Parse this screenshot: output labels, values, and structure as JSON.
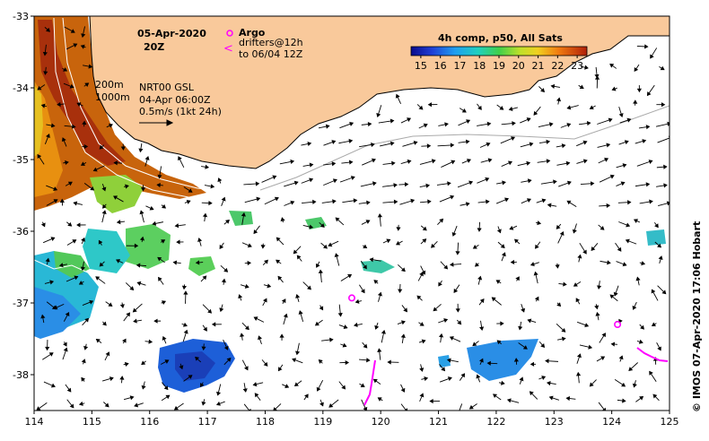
{
  "map": {
    "date_label": "05-Apr-2020",
    "time_label": "20Z",
    "argo_label": "Argo",
    "drifters_label": "drifters@12h",
    "drifters_range_label": "to 06/04 12Z",
    "isobath_labels": [
      "200m",
      "1000m"
    ],
    "product_label": "NRT00 GSL",
    "product_time_label": "04-Apr 06:00Z",
    "scale_label": "0.5m/s (1kt 24h)",
    "colorbar_title": "4h comp, p50, All Sats",
    "colorbar_ticks": [
      "15",
      "16",
      "17",
      "18",
      "19",
      "20",
      "21",
      "22",
      "23"
    ],
    "colorbar_range": [
      14.5,
      23.5
    ],
    "lon_ticks": [
      "114",
      "115",
      "116",
      "117",
      "118",
      "119",
      "120",
      "121",
      "122",
      "123",
      "124",
      "125"
    ],
    "lat_ticks": [
      "-33",
      "-34",
      "-35",
      "-36",
      "-37",
      "-38"
    ],
    "lon_range": [
      114,
      125
    ],
    "lat_range": [
      -38.5,
      -33
    ],
    "credit": "© IMOS 07-Apr-2020 17:06 Hobart",
    "colors": {
      "land": "#f9c99b",
      "argo": "#ff00ff",
      "drifter": "#ff00ff"
    },
    "argo_floats": [
      {
        "lon": 119.5,
        "lat": -36.93
      },
      {
        "lon": 124.1,
        "lat": -37.3
      }
    ]
  }
}
